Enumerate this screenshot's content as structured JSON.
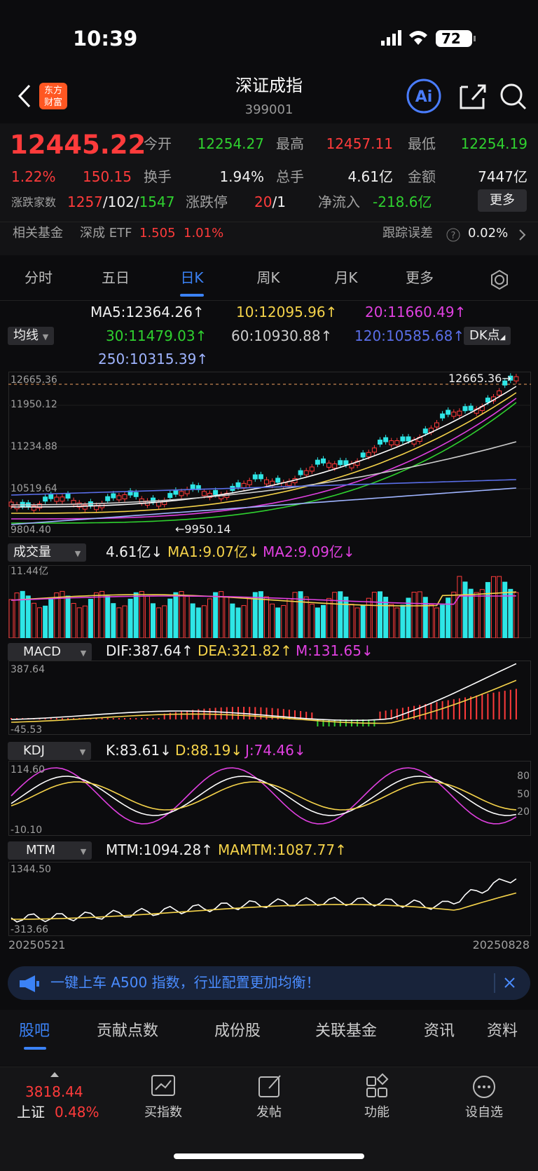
{
  "status": {
    "time": "10:39",
    "battery": "72"
  },
  "header": {
    "title": "深证成指",
    "code": "399001"
  },
  "quote": {
    "price": "12445.22",
    "change_pct": "1.22%",
    "change": "150.15",
    "stats": [
      [
        "今开",
        "12254.27"
      ],
      [
        "最高",
        "12457.11"
      ],
      [
        "最低",
        "12254.19"
      ],
      [
        "换手",
        "1.94%"
      ],
      [
        "总手",
        "4.61亿"
      ],
      [
        "金额",
        "7447亿"
      ]
    ],
    "breadth_label": "涨跌家数",
    "up": "1257",
    "flat": "/102/",
    "down": "1547",
    "limit_label": "涨跌停",
    "limit_up": "20",
    "limit_down": "/1",
    "flow_label": "净流入",
    "flow": "-218.6亿",
    "more": "更多"
  },
  "fund": {
    "label": "相关基金",
    "name": "深成 ETF",
    "price": "1.505",
    "pct": "1.01%",
    "error_label": "跟踪误差",
    "error": "0.02%"
  },
  "tabs": [
    "分时",
    "五日",
    "日K",
    "周K",
    "月K",
    "更多"
  ],
  "ma": {
    "selector": "均线",
    "dk": "DK点",
    "items": [
      "MA5:12364.26↑",
      "10:12095.96↑",
      "20:11660.49↑",
      "30:11479.03↑",
      "60:10930.88↑",
      "120:10585.68↑",
      "250:10315.39↑"
    ]
  },
  "price_axis": [
    "12665.36",
    "11950.12",
    "11234.88",
    "10519.64",
    "9804.40"
  ],
  "high_label": "12665.36→",
  "low_label": "←9950.14",
  "volume": {
    "selector": "成交量",
    "value": "4.61亿↓",
    "ma1": "MA1:9.07亿↓",
    "ma2": "MA2:9.09亿↓",
    "max": "11.44亿"
  },
  "macd": {
    "selector": "MACD",
    "dif": "DIF:387.64↑",
    "dea": "DEA:321.82↑",
    "m": "M:131.65↓",
    "max": "387.64",
    "min": "-45.53"
  },
  "kdj": {
    "selector": "KDJ",
    "k": "K:83.61↓",
    "d": "D:88.19↓",
    "j": "J:74.46↓",
    "max": "114.60",
    "min": "-10.10",
    "levels": [
      "80",
      "50",
      "20"
    ]
  },
  "mtm": {
    "selector": "MTM",
    "mtm": "MTM:1094.28↑",
    "mamtm": "MAMTM:1087.77↑",
    "max": "1344.50",
    "min": "-313.66"
  },
  "dates": [
    "20250521",
    "20250828"
  ],
  "banner": "一键上车 A500 指数，行业配置更加均衡！",
  "subtabs": [
    "股吧",
    "贡献点数",
    "成份股",
    "关联基金",
    "资讯",
    "资料"
  ],
  "bottom": {
    "index_value": "3818.44",
    "index_name": "上证",
    "index_pct": "0.48%",
    "items": [
      "买指数",
      "发帖",
      "功能",
      "设自选"
    ]
  }
}
